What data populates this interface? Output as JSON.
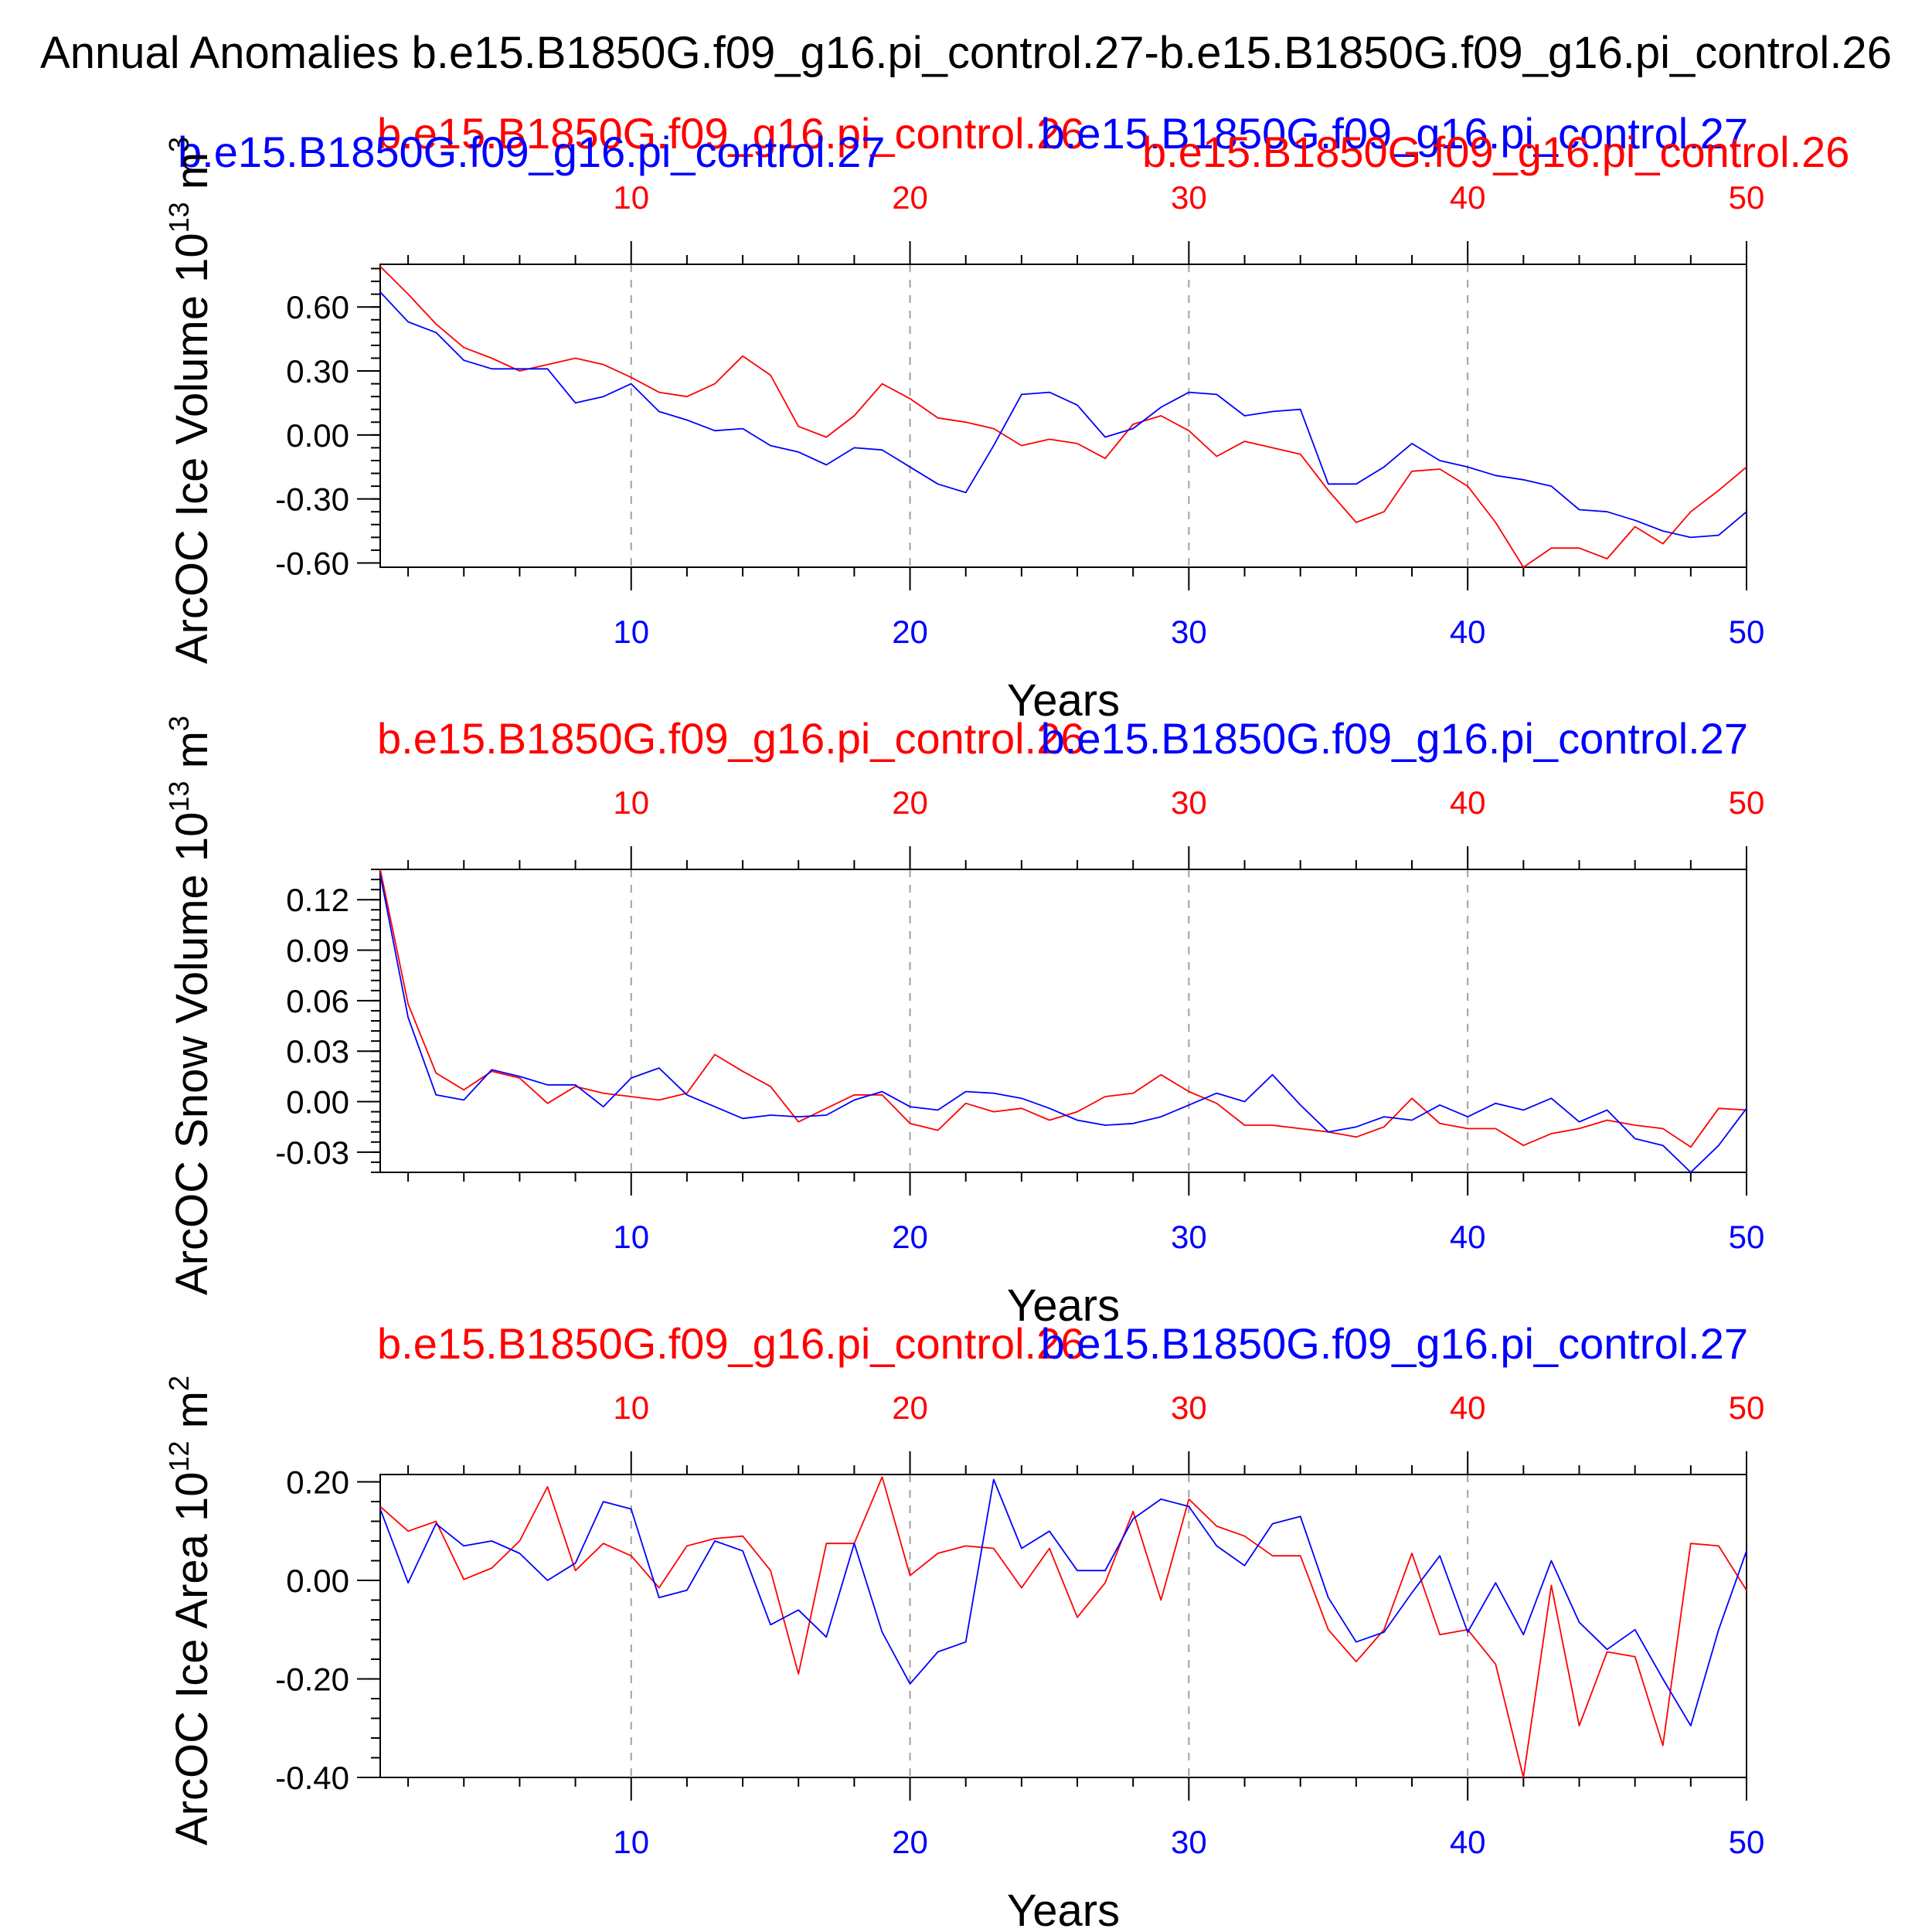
{
  "figure_title": "Annual Anomalies b.e15.B1850G.f09_g16.pi_control.27-b.e15.B1850G.f09_g16.pi_control.26",
  "colors": {
    "case1": "#ff0000",
    "case2": "#0000ff",
    "axis": "#000000",
    "grid": "#a0a0a0"
  },
  "chart_data": [
    {
      "type": "line",
      "ylabel": "ArcOC Ice Volume 10",
      "ylabel_exp": "13",
      "ylabel_unit": "m",
      "ylabel_unit_exp": "3",
      "xlabel": "Years",
      "xlim": [
        1,
        50
      ],
      "ylim": [
        -0.62,
        0.8
      ],
      "yticks": [
        0.6,
        0.3,
        0.0,
        -0.3,
        -0.6
      ],
      "yticklabels": [
        "0.60",
        "0.30",
        "0.00",
        "-0.30",
        "-0.60"
      ],
      "xticks": [
        10,
        20,
        30,
        40,
        50
      ],
      "xticklabels": [
        "10",
        "20",
        "30",
        "40",
        "50"
      ],
      "top_xticklabels": [
        "10",
        "20",
        "30",
        "40",
        "50"
      ],
      "grid_x": [
        10,
        20,
        30,
        40
      ],
      "legend": {
        "left": "b.e15.B1850G.f09_g16.pi_control.26",
        "right": "b.e15.B1850G.f09_g16.pi_control.27"
      },
      "extra_labels": [
        {
          "text": "b.e15.B1850G.f09_g16.pi_control.27",
          "color": "case2",
          "pos": "left"
        },
        {
          "text": "b.e15.B1850G.f09_g16.pi_control.26",
          "color": "case1",
          "pos": "right"
        }
      ],
      "series": [
        {
          "color": "case1",
          "y": [
            0.79,
            0.66,
            0.52,
            0.41,
            0.36,
            0.3,
            0.33,
            0.36,
            0.33,
            0.27,
            0.2,
            0.18,
            0.24,
            0.37,
            0.28,
            0.04,
            -0.01,
            0.09,
            0.24,
            0.17,
            0.08,
            0.06,
            0.03,
            -0.05,
            -0.02,
            -0.04,
            -0.11,
            0.05,
            0.09,
            0.02,
            -0.1,
            -0.03,
            -0.06,
            -0.09,
            -0.26,
            -0.41,
            -0.36,
            -0.17,
            -0.16,
            -0.24,
            -0.41,
            -0.62,
            -0.53,
            -0.53,
            -0.58,
            -0.43,
            -0.51,
            -0.36,
            -0.26,
            -0.15
          ]
        },
        {
          "color": "case2",
          "y": [
            0.67,
            0.53,
            0.48,
            0.35,
            0.31,
            0.31,
            0.31,
            0.15,
            0.18,
            0.24,
            0.11,
            0.07,
            0.02,
            0.03,
            -0.05,
            -0.08,
            -0.14,
            -0.06,
            -0.07,
            -0.15,
            -0.23,
            -0.27,
            -0.05,
            0.19,
            0.2,
            0.14,
            -0.01,
            0.03,
            0.13,
            0.2,
            0.19,
            0.09,
            0.11,
            0.12,
            -0.23,
            -0.23,
            -0.15,
            -0.04,
            -0.12,
            -0.15,
            -0.19,
            -0.21,
            -0.24,
            -0.35,
            -0.36,
            -0.4,
            -0.45,
            -0.48,
            -0.47,
            -0.36
          ]
        }
      ]
    },
    {
      "type": "line",
      "ylabel": "ArcOC Snow Volume 10",
      "ylabel_exp": "13",
      "ylabel_unit": "m",
      "ylabel_unit_exp": "3",
      "xlabel": "Years",
      "xlim": [
        1,
        50
      ],
      "ylim": [
        -0.042,
        0.138
      ],
      "yticks": [
        0.12,
        0.09,
        0.06,
        0.03,
        0.0,
        -0.03
      ],
      "yticklabels": [
        "0.12",
        "0.09",
        "0.06",
        "0.03",
        "0.00",
        "-0.03"
      ],
      "xticks": [
        10,
        20,
        30,
        40,
        50
      ],
      "xticklabels": [
        "10",
        "20",
        "30",
        "40",
        "50"
      ],
      "top_xticklabels": [
        "10",
        "20",
        "30",
        "40",
        "50"
      ],
      "grid_x": [
        10,
        20,
        30,
        40
      ],
      "legend": {
        "left": "b.e15.B1850G.f09_g16.pi_control.26",
        "right": "b.e15.B1850G.f09_g16.pi_control.27"
      },
      "extra_labels": [],
      "series": [
        {
          "color": "case1",
          "y": [
            0.138,
            0.058,
            0.017,
            0.007,
            0.018,
            0.014,
            -0.001,
            0.009,
            0.005,
            0.003,
            0.001,
            0.005,
            0.028,
            0.018,
            0.009,
            -0.012,
            -0.004,
            0.004,
            0.004,
            -0.013,
            -0.017,
            -0.001,
            -0.006,
            -0.004,
            -0.011,
            -0.006,
            0.003,
            0.005,
            0.016,
            0.006,
            -0.001,
            -0.014,
            -0.014,
            -0.016,
            -0.018,
            -0.021,
            -0.015,
            0.002,
            -0.013,
            -0.016,
            -0.016,
            -0.026,
            -0.019,
            -0.016,
            -0.011,
            -0.014,
            -0.016,
            -0.027,
            -0.004,
            -0.005
          ]
        },
        {
          "color": "case2",
          "y": [
            0.135,
            0.05,
            0.004,
            0.001,
            0.019,
            0.015,
            0.01,
            0.01,
            -0.003,
            0.014,
            0.02,
            0.004,
            -0.003,
            -0.01,
            -0.008,
            -0.009,
            -0.008,
            0.001,
            0.006,
            -0.003,
            -0.005,
            0.006,
            0.005,
            0.002,
            -0.004,
            -0.011,
            -0.014,
            -0.013,
            -0.009,
            -0.002,
            0.005,
            0.0,
            0.016,
            -0.002,
            -0.018,
            -0.015,
            -0.009,
            -0.011,
            -0.002,
            -0.009,
            -0.001,
            -0.005,
            0.002,
            -0.012,
            -0.005,
            -0.022,
            -0.026,
            -0.042,
            -0.026,
            -0.004
          ]
        }
      ]
    },
    {
      "type": "line",
      "ylabel": "ArcOC Ice Area 10",
      "ylabel_exp": "12",
      "ylabel_unit": "m",
      "ylabel_unit_exp": "2",
      "xlabel": "Years",
      "xlim": [
        1,
        50
      ],
      "ylim": [
        -0.4,
        0.215
      ],
      "yticks": [
        0.2,
        0.0,
        -0.2,
        -0.4
      ],
      "yticklabels": [
        "0.20",
        "0.00",
        "-0.20",
        "-0.40"
      ],
      "xticks": [
        10,
        20,
        30,
        40,
        50
      ],
      "xticklabels": [
        "10",
        "20",
        "30",
        "40",
        "50"
      ],
      "top_xticklabels": [
        "10",
        "20",
        "30",
        "40",
        "50"
      ],
      "grid_x": [
        10,
        20,
        30,
        40
      ],
      "legend": {
        "left": "b.e15.B1850G.f09_g16.pi_control.26",
        "right": "b.e15.B1850G.f09_g16.pi_control.27"
      },
      "extra_labels": [],
      "series": [
        {
          "color": "case1",
          "y": [
            0.15,
            0.1,
            0.12,
            0.002,
            0.025,
            0.08,
            0.19,
            0.02,
            0.075,
            0.05,
            -0.015,
            0.07,
            0.085,
            0.09,
            0.02,
            -0.19,
            0.075,
            0.075,
            0.21,
            0.01,
            0.055,
            0.07,
            0.065,
            -0.015,
            0.065,
            -0.075,
            -0.005,
            0.14,
            -0.04,
            0.165,
            0.11,
            0.09,
            0.05,
            0.05,
            -0.1,
            -0.165,
            -0.1,
            0.055,
            -0.11,
            -0.1,
            -0.17,
            -0.4,
            -0.01,
            -0.295,
            -0.145,
            -0.155,
            -0.335,
            0.075,
            0.07,
            -0.02
          ]
        },
        {
          "color": "case2",
          "y": [
            0.145,
            -0.005,
            0.115,
            0.07,
            0.08,
            0.055,
            0.0,
            0.035,
            0.16,
            0.145,
            -0.035,
            -0.02,
            0.08,
            0.06,
            -0.09,
            -0.06,
            -0.115,
            0.075,
            -0.105,
            -0.21,
            -0.145,
            -0.125,
            0.205,
            0.065,
            0.1,
            0.02,
            0.02,
            0.125,
            0.165,
            0.15,
            0.07,
            0.03,
            0.115,
            0.13,
            -0.035,
            -0.125,
            -0.105,
            -0.025,
            0.05,
            -0.105,
            -0.005,
            -0.11,
            0.04,
            -0.085,
            -0.14,
            -0.1,
            -0.2,
            -0.295,
            -0.1,
            0.06
          ]
        }
      ]
    }
  ]
}
